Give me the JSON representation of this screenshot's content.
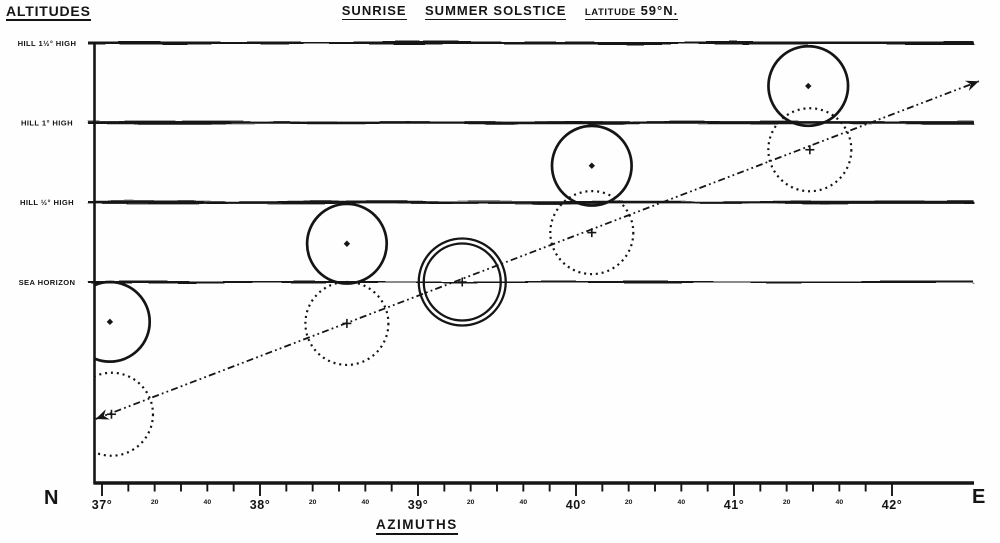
{
  "paper_color": "#fefefe",
  "ink_color": "#151515",
  "header": {
    "altitudes_title": "ALTITUDES",
    "title_word1": "SUNRISE",
    "title_word2": "SUMMER SOLSTICE",
    "latitude_label": "LATITUDE",
    "latitude_value": "59°N."
  },
  "footer": {
    "azimuths_title": "AZIMUTHS",
    "north_label": "N",
    "east_label": "E"
  },
  "chart_data": {
    "type": "scatter",
    "title": "Sunrise Summer Solstice, Latitude 59°N",
    "xlabel": "Azimuths",
    "ylabel": "Altitudes",
    "x_unit": "degrees of azimuth, North toward East",
    "y_unit": "degrees of altitude",
    "x_range": [
      36.95,
      42.55
    ],
    "y_range": [
      -1.27,
      1.51
    ],
    "grid": false,
    "legend": "none",
    "horizon_lines": [
      {
        "label": "HILL 1½° HIGH",
        "altitude_deg": 1.5
      },
      {
        "label": "HILL 1° HIGH",
        "altitude_deg": 1.0
      },
      {
        "label": "HILL ½° HIGH",
        "altitude_deg": 0.5
      },
      {
        "label": "SEA HORIZON",
        "altitude_deg": 0.0
      }
    ],
    "x_tick_labels": [
      {
        "azimuth_deg": 37.0,
        "text": "37°",
        "kind": "degree"
      },
      {
        "azimuth_deg": 37.3333,
        "text": "20",
        "kind": "minute"
      },
      {
        "azimuth_deg": 37.6667,
        "text": "40",
        "kind": "minute"
      },
      {
        "azimuth_deg": 38.0,
        "text": "38°",
        "kind": "degree"
      },
      {
        "azimuth_deg": 38.3333,
        "text": "20",
        "kind": "minute"
      },
      {
        "azimuth_deg": 38.6667,
        "text": "40",
        "kind": "minute"
      },
      {
        "azimuth_deg": 39.0,
        "text": "39°",
        "kind": "degree"
      },
      {
        "azimuth_deg": 39.3333,
        "text": "20",
        "kind": "minute"
      },
      {
        "azimuth_deg": 39.6667,
        "text": "40",
        "kind": "minute"
      },
      {
        "azimuth_deg": 40.0,
        "text": "40°",
        "kind": "degree"
      },
      {
        "azimuth_deg": 40.3333,
        "text": "20",
        "kind": "minute"
      },
      {
        "azimuth_deg": 40.6667,
        "text": "40",
        "kind": "minute"
      },
      {
        "azimuth_deg": 41.0,
        "text": "41°",
        "kind": "degree"
      },
      {
        "azimuth_deg": 41.3333,
        "text": "20",
        "kind": "minute"
      },
      {
        "azimuth_deg": 41.6667,
        "text": "40",
        "kind": "minute"
      },
      {
        "azimuth_deg": 42.0,
        "text": "42°",
        "kind": "degree"
      }
    ],
    "x_minor_tick_step_deg": 0.16667,
    "sun_disk_radius_deg": 0.25,
    "sun_positions": [
      {
        "azimuth_deg": 37.05,
        "altitude_deg": -0.25,
        "style": "solid",
        "center_mark": "dot"
      },
      {
        "azimuth_deg": 37.06,
        "altitude_deg": -0.83,
        "style": "dotted",
        "center_mark": "cross"
      },
      {
        "azimuth_deg": 38.55,
        "altitude_deg": 0.24,
        "style": "solid",
        "center_mark": "dot"
      },
      {
        "azimuth_deg": 38.55,
        "altitude_deg": -0.26,
        "style": "dotted",
        "center_mark": "cross"
      },
      {
        "azimuth_deg": 39.28,
        "altitude_deg": 0.0,
        "style": "double",
        "center_mark": "cross"
      },
      {
        "azimuth_deg": 40.1,
        "altitude_deg": 0.73,
        "style": "solid",
        "center_mark": "dot"
      },
      {
        "azimuth_deg": 40.1,
        "altitude_deg": 0.31,
        "style": "dotted",
        "center_mark": "cross"
      },
      {
        "azimuth_deg": 41.47,
        "altitude_deg": 1.23,
        "style": "solid",
        "center_mark": "dot"
      },
      {
        "azimuth_deg": 41.48,
        "altitude_deg": 0.83,
        "style": "dotted",
        "center_mark": "cross"
      }
    ],
    "sun_path": {
      "style": "dash-dot",
      "arrow_ends": "both",
      "from": {
        "azimuth_deg": 36.96,
        "altitude_deg": -0.86
      },
      "to": {
        "azimuth_deg": 42.55,
        "altitude_deg": 1.26
      }
    }
  }
}
